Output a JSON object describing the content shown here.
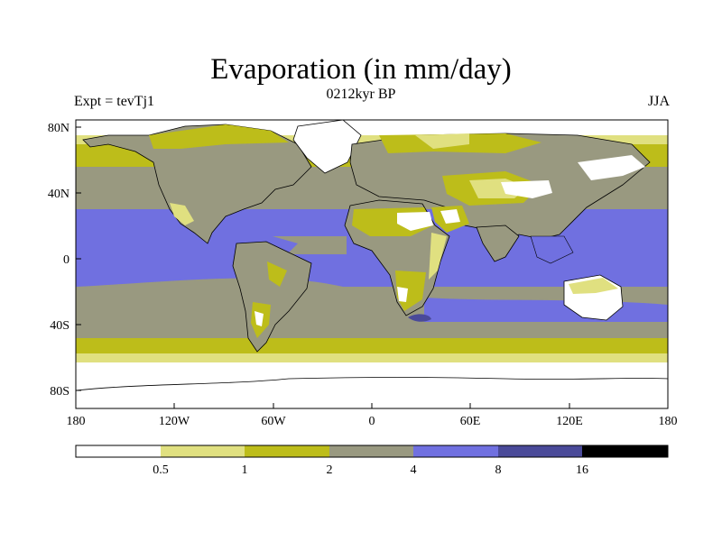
{
  "title": "Evaporation (in mm/day)",
  "subtitle": "0212kyr BP",
  "left_label": "Expt = tevTj1",
  "right_label": "JJA",
  "map": {
    "lat_ticks": [
      "80N",
      "40N",
      "0",
      "40S",
      "80S"
    ],
    "lon_ticks": [
      "180",
      "120W",
      "60W",
      "0",
      "60E",
      "120E",
      "180"
    ]
  },
  "legend": {
    "colors": [
      "#ffffff",
      "#e0e080",
      "#bdbd1a",
      "#999980",
      "#7070e0",
      "#4a4a99",
      "#000000"
    ],
    "labels": [
      "0.5",
      "1",
      "2",
      "4",
      "8",
      "16"
    ]
  },
  "colors": {
    "land": "#ffffff",
    "coast": "#000000"
  }
}
